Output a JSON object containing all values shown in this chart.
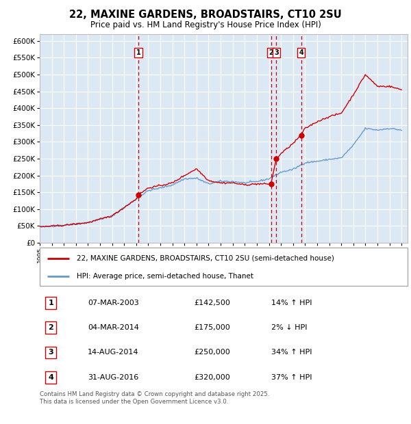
{
  "title": "22, MAXINE GARDENS, BROADSTAIRS, CT10 2SU",
  "subtitle": "Price paid vs. HM Land Registry's House Price Index (HPI)",
  "red_label": "22, MAXINE GARDENS, BROADSTAIRS, CT10 2SU (semi-detached house)",
  "blue_label": "HPI: Average price, semi-detached house, Thanet",
  "footer": "Contains HM Land Registry data © Crown copyright and database right 2025.\nThis data is licensed under the Open Government Licence v3.0.",
  "transactions": [
    {
      "num": 1,
      "date": "07-MAR-2003",
      "price": 142500,
      "pct": "14%",
      "dir": "↑",
      "year": 2003.18
    },
    {
      "num": 2,
      "date": "04-MAR-2014",
      "price": 175000,
      "pct": "2%",
      "dir": "↓",
      "year": 2014.17
    },
    {
      "num": 3,
      "date": "14-AUG-2014",
      "price": 250000,
      "pct": "34%",
      "dir": "↑",
      "year": 2014.62
    },
    {
      "num": 4,
      "date": "31-AUG-2016",
      "price": 320000,
      "pct": "37%",
      "dir": "↑",
      "year": 2016.67
    }
  ],
  "ylim": [
    0,
    620000
  ],
  "yticks": [
    0,
    50000,
    100000,
    150000,
    200000,
    250000,
    300000,
    350000,
    400000,
    450000,
    500000,
    550000,
    600000
  ],
  "xlim_start": 1995,
  "xlim_end": 2025.5,
  "background_color": "#dce9f5",
  "grid_color": "#ffffff",
  "red_color": "#cc0000",
  "blue_color": "#6699cc",
  "hpi_key_points": {
    "1995": 47000,
    "1997": 52000,
    "1999": 60000,
    "2001": 80000,
    "2003": 130000,
    "2004": 155000,
    "2005": 163000,
    "2006": 172000,
    "2007": 190000,
    "2008": 192000,
    "2009": 175000,
    "2010": 183000,
    "2011": 182000,
    "2012": 178000,
    "2013": 182000,
    "2014": 190000,
    "2015": 210000,
    "2016": 218000,
    "2017": 238000,
    "2018": 242000,
    "2019": 248000,
    "2020": 252000,
    "2021": 290000,
    "2022": 340000,
    "2023": 335000,
    "2024": 340000,
    "2025": 335000
  },
  "prop_key_points": {
    "1995": 47000,
    "1997": 52000,
    "1999": 60000,
    "2001": 80000,
    "2003.0": 130000,
    "2003.18": 142500,
    "2004": 163000,
    "2005": 170000,
    "2006": 178000,
    "2007": 200000,
    "2008": 220000,
    "2009": 185000,
    "2010": 178000,
    "2011": 178000,
    "2012": 172000,
    "2013": 175000,
    "2014.17": 175000,
    "2014.62": 250000,
    "2015": 265000,
    "2016.0": 295000,
    "2016.67": 320000,
    "2017": 340000,
    "2018": 360000,
    "2019": 375000,
    "2020": 385000,
    "2021": 440000,
    "2022": 500000,
    "2023": 465000,
    "2024": 465000,
    "2025": 455000
  }
}
